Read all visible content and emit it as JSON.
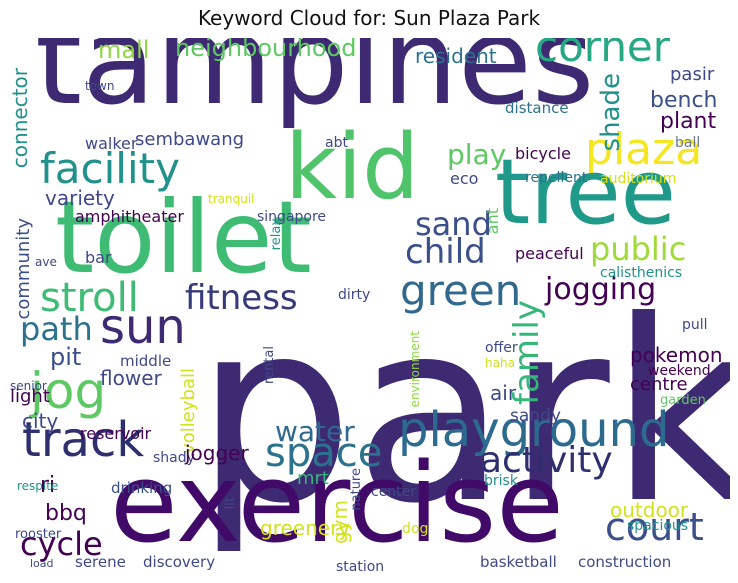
{
  "title": "Keyword Cloud for: Sun Plaza Park",
  "palette": {
    "purple_dark": "#440154",
    "indigo": "#3b2b7a",
    "blue_grey": "#31688e",
    "teal": "#21908d",
    "green_teal": "#2aa980",
    "green": "#44bf70",
    "light_green": "#6ece58",
    "yellow_green": "#b5de2b",
    "yellow": "#fde725"
  },
  "words": [
    {
      "text": "park",
      "color": "#3e2a72"
    },
    {
      "text": "tampines",
      "color": "#3e2a72"
    },
    {
      "text": "exercise",
      "color": "#420a68"
    },
    {
      "text": "toilet",
      "color": "#3fbc73"
    },
    {
      "text": "tree",
      "color": "#1f9a8a"
    },
    {
      "text": "kid",
      "color": "#50c46a"
    },
    {
      "text": "playground",
      "color": "#2c6a8e"
    },
    {
      "text": "track",
      "color": "#2d2f6f"
    },
    {
      "text": "plaza",
      "color": "#f6e620"
    },
    {
      "text": "corner",
      "color": "#26a884"
    },
    {
      "text": "facility",
      "color": "#21918c"
    },
    {
      "text": "stroll",
      "color": "#3ebc74"
    },
    {
      "text": "fitness",
      "color": "#353a78"
    },
    {
      "text": "green",
      "color": "#31688e"
    },
    {
      "text": "sun",
      "color": "#3e2a72"
    },
    {
      "text": "jog",
      "color": "#5ec962"
    },
    {
      "text": "space",
      "color": "#2c728e"
    },
    {
      "text": "activity",
      "color": "#2d2f6f"
    },
    {
      "text": "court",
      "color": "#3b4f8a"
    },
    {
      "text": "water",
      "color": "#31688e"
    },
    {
      "text": "child",
      "color": "#3b4f8a"
    },
    {
      "text": "jogging",
      "color": "#440154"
    },
    {
      "text": "path",
      "color": "#2c728e"
    },
    {
      "text": "family",
      "color": "#35b779"
    },
    {
      "text": "public",
      "color": "#a0da39"
    },
    {
      "text": "sand",
      "color": "#3b4f8a"
    },
    {
      "text": "play",
      "color": "#5ec962"
    },
    {
      "text": "cycle",
      "color": "#440154"
    },
    {
      "text": "mall",
      "color": "#90d743"
    },
    {
      "text": "neighbourhood",
      "color": "#5ec962"
    },
    {
      "text": "resident",
      "color": "#2c728e"
    },
    {
      "text": "shade",
      "color": "#21918c"
    },
    {
      "text": "bench",
      "color": "#3b4f8a"
    },
    {
      "text": "plant",
      "color": "#440154"
    },
    {
      "text": "pasir",
      "color": "#3e4989"
    },
    {
      "text": "distance",
      "color": "#2c728e"
    },
    {
      "text": "ball",
      "color": "#6b7a8f"
    },
    {
      "text": "bicycle",
      "color": "#440154"
    },
    {
      "text": "eco",
      "color": "#3e4989"
    },
    {
      "text": "repellent",
      "color": "#2c728e"
    },
    {
      "text": "auditorium",
      "color": "#d2e21b"
    },
    {
      "text": "town",
      "color": "#3e4989"
    },
    {
      "text": "connector",
      "color": "#21918c"
    },
    {
      "text": "sembawang",
      "color": "#3e4989"
    },
    {
      "text": "walker",
      "color": "#3e4989"
    },
    {
      "text": "abt",
      "color": "#3e4989"
    },
    {
      "text": "variety",
      "color": "#3e4989"
    },
    {
      "text": "tranquil",
      "color": "#d2e21b"
    },
    {
      "text": "amphitheater",
      "color": "#440154"
    },
    {
      "text": "singapore",
      "color": "#3e4989"
    },
    {
      "text": "relax",
      "color": "#21918c"
    },
    {
      "text": "ant",
      "color": "#5ec962"
    },
    {
      "text": "community",
      "color": "#3b4f8a"
    },
    {
      "text": "ave",
      "color": "#3e4989"
    },
    {
      "text": "bar",
      "color": "#3e4989"
    },
    {
      "text": "peaceful",
      "color": "#440154"
    },
    {
      "text": "calisthenics",
      "color": "#21918c"
    },
    {
      "text": "dirty",
      "color": "#3e4989"
    },
    {
      "text": "pull",
      "color": "#3e4989"
    },
    {
      "text": "offer",
      "color": "#3e4989"
    },
    {
      "text": "haha",
      "color": "#d2e21b"
    },
    {
      "text": "pit",
      "color": "#3b4f8a"
    },
    {
      "text": "pokemon",
      "color": "#440154"
    },
    {
      "text": "flower",
      "color": "#3e4989"
    },
    {
      "text": "middle",
      "color": "#3e4989"
    },
    {
      "text": "volleyball",
      "color": "#d2e21b"
    },
    {
      "text": "rental",
      "color": "#3e4989"
    },
    {
      "text": "weekend",
      "color": "#440154"
    },
    {
      "text": "centre",
      "color": "#440154"
    },
    {
      "text": "senior",
      "color": "#3e4989"
    },
    {
      "text": "light",
      "color": "#440154"
    },
    {
      "text": "air",
      "color": "#3e4989"
    },
    {
      "text": "environment",
      "color": "#90d743"
    },
    {
      "text": "garden",
      "color": "#5ec962"
    },
    {
      "text": "city",
      "color": "#3e4989"
    },
    {
      "text": "sandy",
      "color": "#3e4989"
    },
    {
      "text": "reservoir",
      "color": "#440154"
    },
    {
      "text": "shady",
      "color": "#3e4989"
    },
    {
      "text": "jogger",
      "color": "#440154"
    },
    {
      "text": "ri",
      "color": "#440154"
    },
    {
      "text": "mrt",
      "color": "#35b779"
    },
    {
      "text": "outdoor",
      "color": "#d2e21b"
    },
    {
      "text": "respite",
      "color": "#21918c"
    },
    {
      "text": "drinking",
      "color": "#3b4f8a"
    },
    {
      "text": "brisk",
      "color": "#21918c"
    },
    {
      "text": "bbq",
      "color": "#440154"
    },
    {
      "text": "center",
      "color": "#3e4989"
    },
    {
      "text": "nature",
      "color": "#3e4989"
    },
    {
      "text": "spacious",
      "color": "#21918c"
    },
    {
      "text": "lit",
      "color": "#3e4989"
    },
    {
      "text": "rooster",
      "color": "#3e4989"
    },
    {
      "text": "dog",
      "color": "#d2e21b"
    },
    {
      "text": "serene",
      "color": "#3e4989"
    },
    {
      "text": "discovery",
      "color": "#3e4989"
    },
    {
      "text": "greenery",
      "color": "#d2e21b"
    },
    {
      "text": "gym",
      "color": "#d2e21b"
    },
    {
      "text": "station",
      "color": "#3e4989"
    },
    {
      "text": "basketball",
      "color": "#3e4989"
    },
    {
      "text": "construction",
      "color": "#3e4989"
    },
    {
      "text": "load",
      "color": "#3e4989"
    }
  ]
}
